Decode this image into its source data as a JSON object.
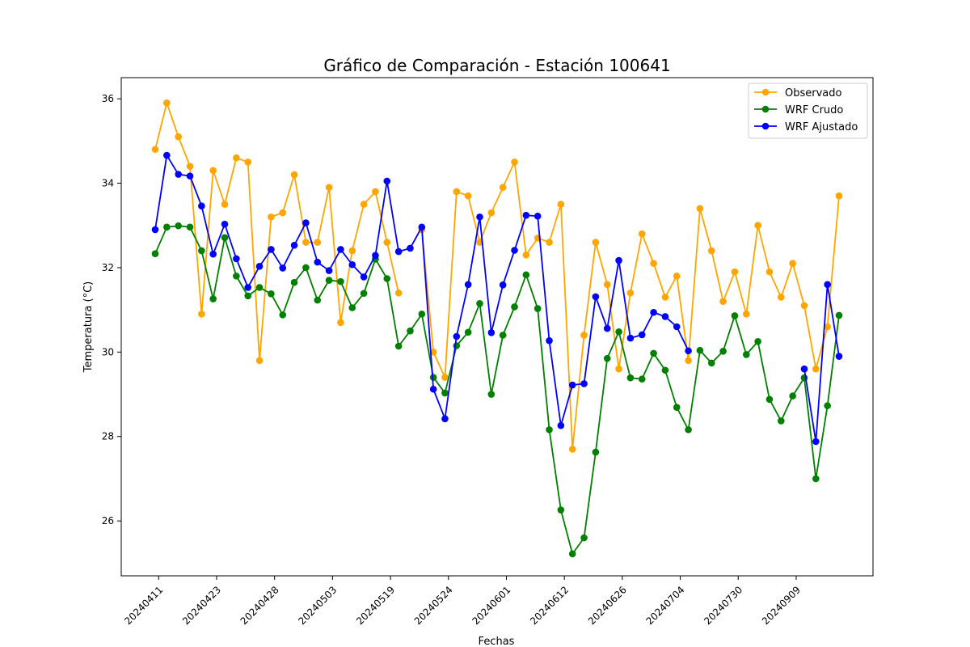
{
  "chart_data": {
    "type": "line",
    "title": "Gráfico de Comparación - Estación 100641",
    "xlabel": "Fechas",
    "ylabel": "Temperatura (°C)",
    "ylim": [
      24.7,
      36.5
    ],
    "yticks": [
      26,
      28,
      30,
      32,
      34,
      36
    ],
    "xticks": [
      {
        "index": 0.3,
        "label": "20240411"
      },
      {
        "index": 5.3,
        "label": "20240423"
      },
      {
        "index": 10.3,
        "label": "20240428"
      },
      {
        "index": 15.3,
        "label": "20240503"
      },
      {
        "index": 20.3,
        "label": "20240519"
      },
      {
        "index": 25.3,
        "label": "20240524"
      },
      {
        "index": 30.3,
        "label": "20240601"
      },
      {
        "index": 35.3,
        "label": "20240612"
      },
      {
        "index": 40.3,
        "label": "20240626"
      },
      {
        "index": 45.3,
        "label": "20240704"
      },
      {
        "index": 50.3,
        "label": "20240730"
      },
      {
        "index": 55.3,
        "label": "20240909"
      }
    ],
    "legend_position": "top-right",
    "series": [
      {
        "name": "Observado",
        "color": "#FFA500",
        "values": [
          34.8,
          35.9,
          35.1,
          34.4,
          30.9,
          34.3,
          33.5,
          34.6,
          34.5,
          29.8,
          33.2,
          33.3,
          34.2,
          32.6,
          32.6,
          33.9,
          30.7,
          32.4,
          33.5,
          33.8,
          32.6,
          31.4,
          null,
          32.9,
          30.0,
          29.4,
          33.8,
          33.7,
          32.6,
          33.3,
          33.9,
          34.5,
          32.3,
          32.7,
          32.6,
          33.5,
          27.7,
          30.4,
          32.6,
          31.6,
          29.6,
          31.4,
          32.8,
          32.1,
          31.3,
          31.8,
          29.8,
          33.4,
          32.4,
          31.2,
          31.9,
          30.9,
          33.0,
          31.9,
          31.3,
          32.1,
          31.1,
          29.6,
          30.6,
          33.7
        ]
      },
      {
        "name": "WRF Crudo",
        "color": "#008000",
        "values": [
          32.33,
          32.96,
          32.99,
          32.96,
          32.4,
          31.26,
          32.71,
          31.8,
          31.33,
          31.53,
          31.38,
          30.88,
          31.65,
          32.0,
          31.23,
          31.7,
          31.67,
          31.05,
          31.39,
          32.2,
          31.74,
          30.14,
          30.5,
          30.9,
          29.4,
          29.03,
          30.15,
          30.47,
          31.15,
          29.0,
          30.4,
          31.07,
          31.83,
          31.03,
          28.16,
          26.26,
          25.22,
          25.6,
          27.63,
          29.85,
          30.48,
          29.39,
          29.36,
          29.97,
          29.57,
          28.69,
          28.16,
          30.04,
          29.74,
          30.02,
          30.86,
          29.94,
          30.25,
          28.88,
          28.37,
          28.96,
          29.39,
          27.0,
          28.73,
          30.87
        ]
      },
      {
        "name": "WRF Ajustado",
        "color": "#0000FF",
        "values": [
          32.9,
          34.66,
          34.21,
          34.17,
          33.46,
          32.32,
          33.03,
          32.21,
          31.53,
          32.03,
          32.43,
          31.99,
          32.53,
          33.06,
          32.13,
          31.93,
          32.43,
          32.07,
          31.78,
          32.29,
          34.05,
          32.38,
          32.46,
          32.96,
          29.12,
          28.42,
          30.37,
          31.6,
          33.2,
          30.46,
          31.59,
          32.41,
          33.24,
          33.22,
          30.27,
          28.26,
          29.22,
          29.25,
          31.31,
          30.56,
          32.17,
          30.33,
          30.41,
          30.94,
          30.84,
          30.6,
          30.03,
          null,
          null,
          null,
          null,
          null,
          null,
          null,
          null,
          null,
          29.6,
          27.88,
          31.6,
          29.9
        ]
      }
    ]
  }
}
